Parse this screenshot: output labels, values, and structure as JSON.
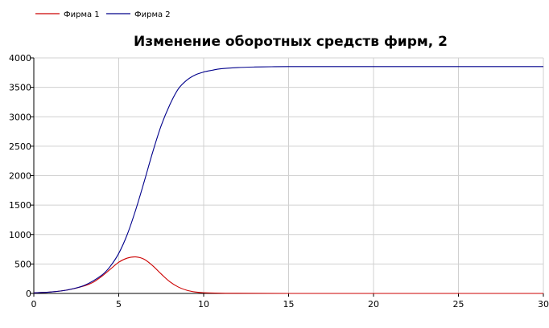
{
  "colors": {
    "background": "#ffffff",
    "grid": "#d0d0d0",
    "axis": "#000000",
    "series_1": "#cc0000",
    "series_2": "#00008b"
  },
  "chart_data": {
    "type": "line",
    "title": "Изменение оборотных средств фирм, 2",
    "xlabel": "",
    "ylabel": "",
    "xlim": [
      0,
      30
    ],
    "ylim": [
      0,
      4000
    ],
    "xticks": [
      "0",
      "5",
      "10",
      "15",
      "20",
      "25",
      "30"
    ],
    "yticks": [
      "0",
      "500",
      "1000",
      "1500",
      "2000",
      "2500",
      "3000",
      "3500",
      "4000"
    ],
    "grid": true,
    "legend_position": "top-left",
    "series": [
      {
        "name": "Фирма 1",
        "color": "#cc0000",
        "x": [
          0,
          1,
          2,
          3,
          3.5,
          4,
          4.5,
          5,
          5.5,
          6,
          6.5,
          7,
          7.5,
          8,
          8.5,
          9,
          9.5,
          10,
          11,
          12,
          15,
          20,
          25,
          30
        ],
        "y": [
          10,
          25,
          60,
          130,
          190,
          290,
          410,
          530,
          600,
          620,
          580,
          470,
          330,
          200,
          110,
          55,
          25,
          12,
          4,
          2,
          0,
          0,
          0,
          0
        ]
      },
      {
        "name": "Фирма 2",
        "color": "#00008b",
        "x": [
          0,
          1,
          2,
          3,
          4,
          4.5,
          5,
          5.5,
          6,
          6.5,
          7,
          7.5,
          8,
          8.5,
          9,
          9.5,
          10,
          10.5,
          11,
          12,
          13,
          14,
          15,
          20,
          25,
          30
        ],
        "y": [
          10,
          25,
          60,
          140,
          310,
          460,
          680,
          1000,
          1420,
          1900,
          2400,
          2850,
          3200,
          3470,
          3620,
          3710,
          3760,
          3790,
          3815,
          3835,
          3845,
          3850,
          3852,
          3853,
          3853,
          3853
        ]
      }
    ]
  }
}
